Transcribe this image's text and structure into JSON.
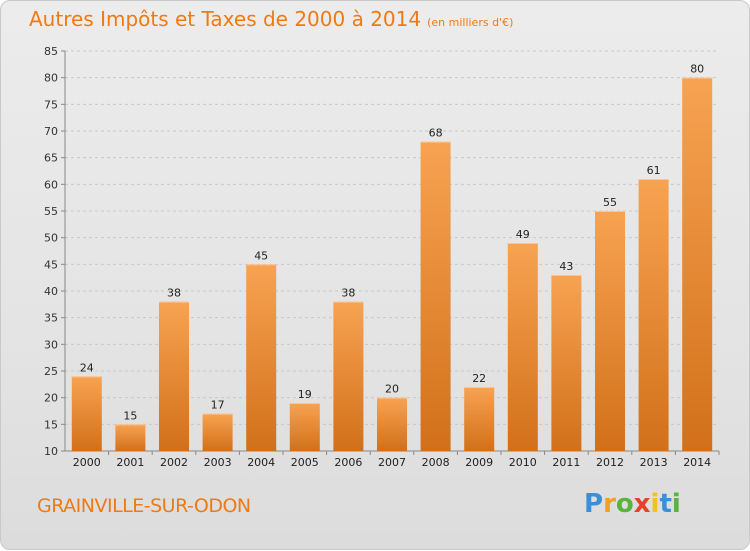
{
  "header": {
    "title": "Autres Impôts et Taxes de 2000 à 2014",
    "subtitle": "(en milliers d'€)"
  },
  "footer": {
    "commune": "GRAINVILLE-SUR-ODON",
    "logo_letters": [
      "P",
      "r",
      "o",
      "x",
      "i",
      "t",
      "i"
    ],
    "logo_colors": [
      "#3a8fd8",
      "#f2a11c",
      "#5ab43c",
      "#e8402c",
      "#f2c21c",
      "#3a8fd8",
      "#5ab43c"
    ]
  },
  "colors": {
    "accent": "#f07a12",
    "bar_light": "#f7a352",
    "bar_dark": "#d2701a",
    "grid": "#c8c8c8"
  },
  "chart_data": {
    "type": "bar",
    "title": "Autres Impôts et Taxes de 2000 à 2014",
    "subtitle": "(en milliers d'€)",
    "categories": [
      "2000",
      "2001",
      "2002",
      "2003",
      "2004",
      "2005",
      "2006",
      "2007",
      "2008",
      "2009",
      "2010",
      "2011",
      "2012",
      "2013",
      "2014"
    ],
    "values": [
      24,
      15,
      38,
      17,
      45,
      19,
      38,
      20,
      68,
      22,
      49,
      43,
      55,
      61,
      80
    ],
    "ylim": [
      10,
      85
    ],
    "yticks": [
      10,
      15,
      20,
      25,
      30,
      35,
      40,
      45,
      50,
      55,
      60,
      65,
      70,
      75,
      80,
      85
    ],
    "grid": true,
    "data_labels": true
  }
}
